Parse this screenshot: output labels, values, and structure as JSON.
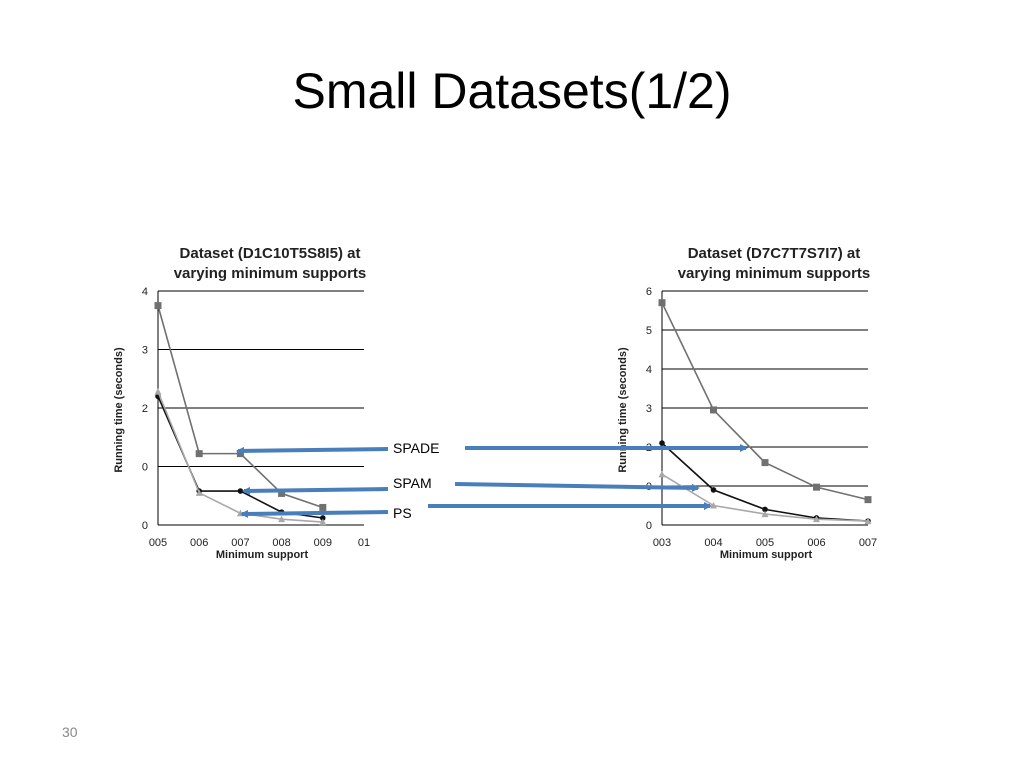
{
  "slide": {
    "title": "Small Datasets(1/2)",
    "page_number": "30"
  },
  "colors": {
    "SPADE": "#707070",
    "SPAM": "#111111",
    "PS": "#a8a8a8",
    "arrow": "#4a7ebb"
  },
  "chart_data": [
    {
      "type": "line",
      "title_lines": [
        "Dataset (D1C10T5S8I5) at",
        "varying minimum supports"
      ],
      "xlabel": "Minimum support",
      "ylabel": "Running time (seconds)",
      "categories": [
        "005",
        "006",
        "007",
        "008",
        "009",
        "01"
      ],
      "y_ticks": [
        "0",
        "0",
        "2",
        "3",
        "4"
      ],
      "ylim": [
        0,
        4
      ],
      "grid": true,
      "series": [
        {
          "name": "SPADE",
          "values": [
            3.75,
            1.22,
            1.22,
            0.54,
            0.3,
            null
          ]
        },
        {
          "name": "SPAM",
          "values": [
            2.2,
            0.58,
            0.58,
            0.22,
            0.12,
            null
          ]
        },
        {
          "name": "PS",
          "values": [
            2.28,
            0.55,
            0.2,
            0.1,
            0.05,
            null
          ]
        }
      ]
    },
    {
      "type": "line",
      "title_lines": [
        "Dataset (D7C7T7S7I7) at",
        "varying minimum supports"
      ],
      "xlabel": "Minimum support",
      "ylabel": "Running time (seconds)",
      "categories": [
        "003",
        "004",
        "005",
        "006",
        "007"
      ],
      "y_ticks": [
        "0",
        "0",
        "2",
        "3",
        "4",
        "5",
        "6"
      ],
      "ylim": [
        0,
        6
      ],
      "grid": true,
      "series": [
        {
          "name": "SPADE",
          "values": [
            5.7,
            2.95,
            1.6,
            0.97,
            0.65
          ]
        },
        {
          "name": "SPAM",
          "values": [
            2.1,
            0.9,
            0.4,
            0.18,
            0.1
          ]
        },
        {
          "name": "PS",
          "values": [
            1.3,
            0.5,
            0.28,
            0.15,
            0.1
          ]
        }
      ]
    }
  ],
  "annotations": [
    {
      "label": "SPADE",
      "series": "SPADE"
    },
    {
      "label": "SPAM",
      "series": "SPAM"
    },
    {
      "label": "PS",
      "series": "PS"
    }
  ]
}
